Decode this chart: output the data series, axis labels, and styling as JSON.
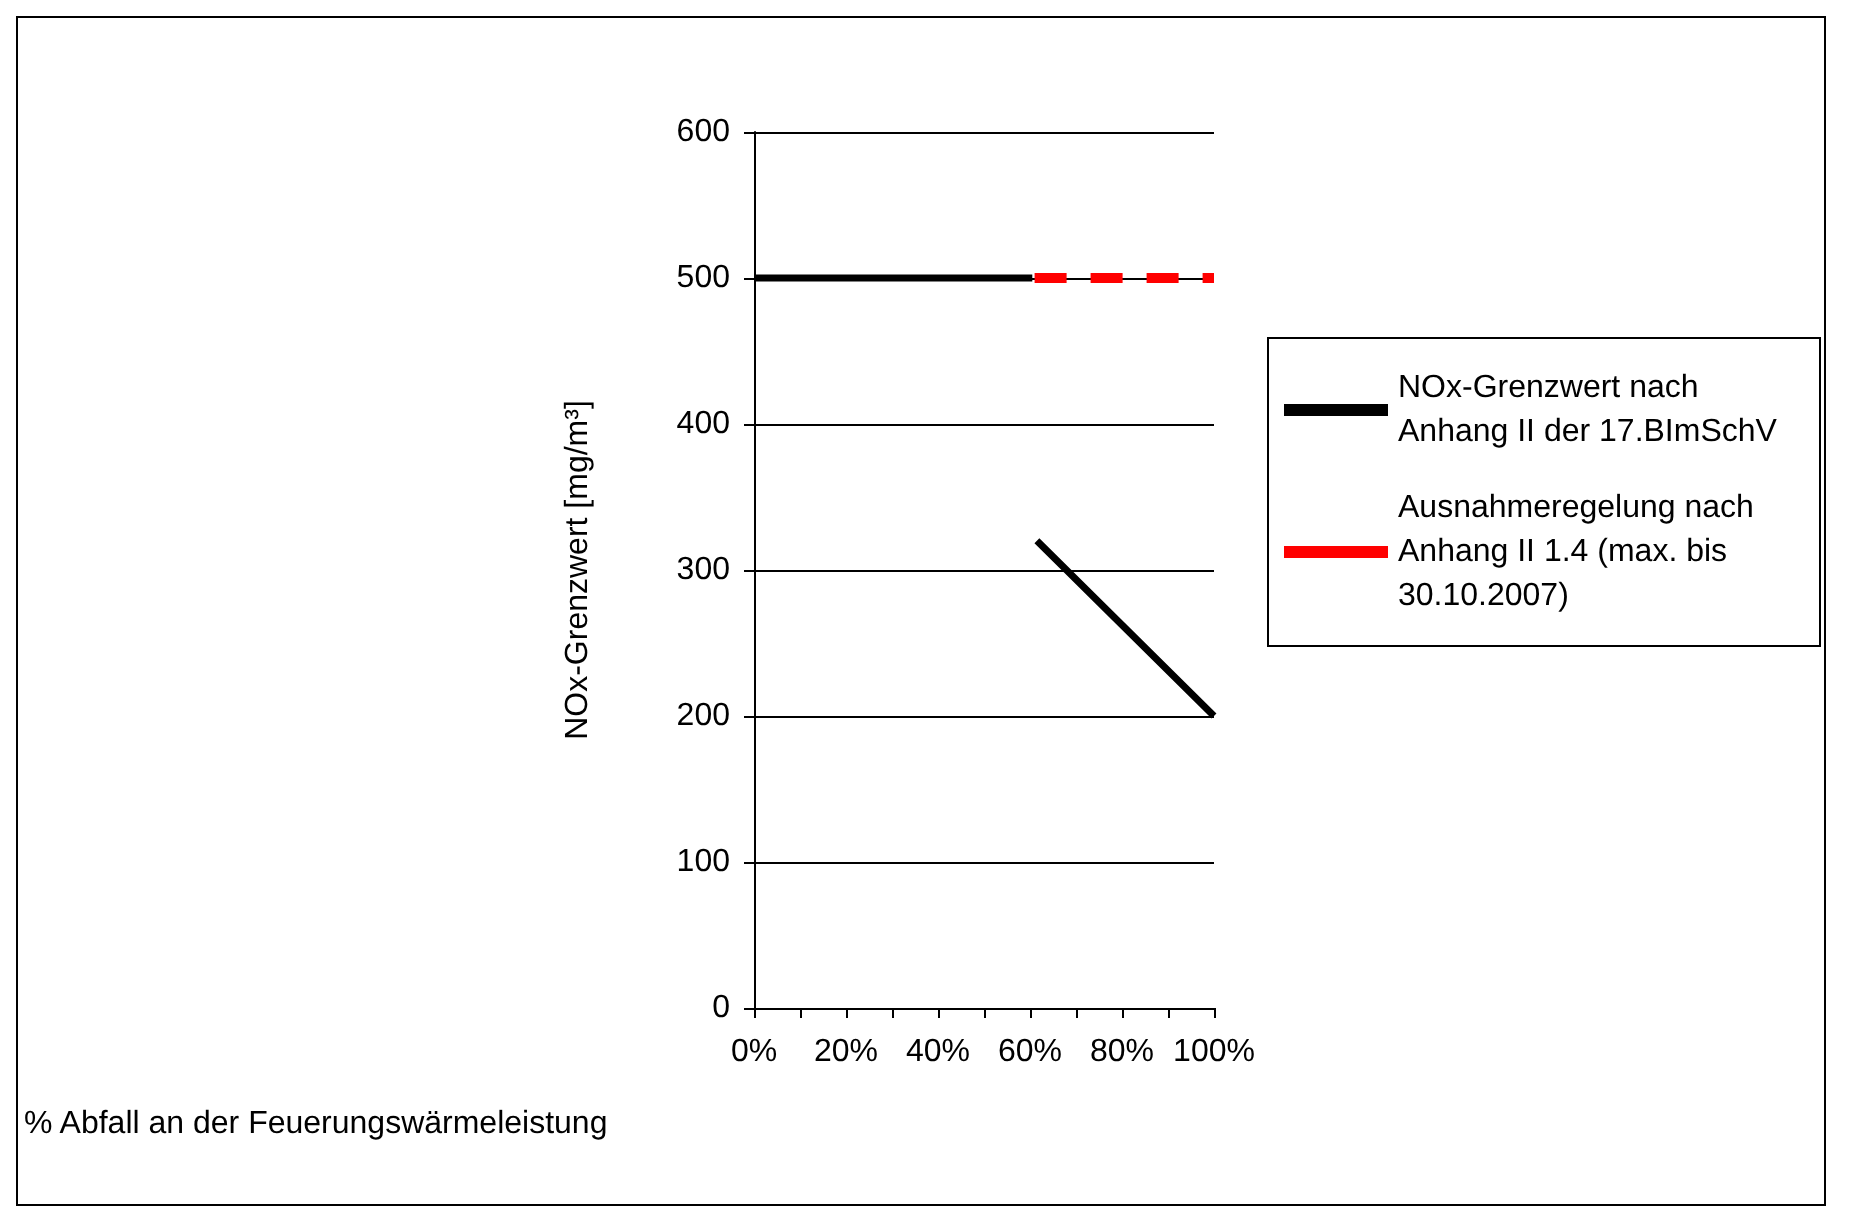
{
  "chart_data": {
    "type": "line",
    "xlabel": "% Abfall an der Feuerungswärmeleistung",
    "ylabel": "NOx-Grenzwert [mg/m³]",
    "xlim": [
      0,
      100
    ],
    "xticks": [
      {
        "value": 0,
        "label": "0%"
      },
      {
        "value": 10,
        "label": null
      },
      {
        "value": 20,
        "label": "20%"
      },
      {
        "value": 30,
        "label": null
      },
      {
        "value": 40,
        "label": "40%"
      },
      {
        "value": 50,
        "label": null
      },
      {
        "value": 60,
        "label": "60%"
      },
      {
        "value": 70,
        "label": null
      },
      {
        "value": 80,
        "label": "80%"
      },
      {
        "value": 90,
        "label": null
      },
      {
        "value": 100,
        "label": "100%"
      }
    ],
    "ylim": [
      0,
      600
    ],
    "yticks": [
      0,
      100,
      200,
      300,
      400,
      500,
      600
    ],
    "grid": "y",
    "legend": "right",
    "marker": "none",
    "series": [
      {
        "name": "NOx-Grenzwert nach Anhang II der 17.BImSchV",
        "color": "#000000",
        "line_style": "solid",
        "x": [
          0,
          60.5,
          60.8,
          61.5,
          100
        ],
        "values": [
          500,
          500,
          null,
          320,
          200
        ]
      },
      {
        "name": "Ausnahmeregelung nach Anhang II 1.4 (max. bis 30.10.2007)",
        "color": "#ff0000",
        "line_style": "dashed",
        "x": [
          61,
          100
        ],
        "values": [
          500,
          500
        ]
      }
    ]
  }
}
